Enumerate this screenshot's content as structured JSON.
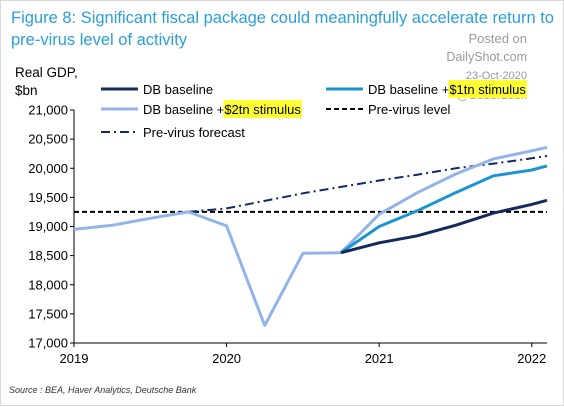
{
  "title": "Figure 8: Significant fiscal package could meaningfully accelerate return to pre-virus level of activity",
  "watermark": {
    "line1": "Posted on",
    "line2": "DailyShot.com",
    "line3": "23-Oct-2020",
    "line4": "@SoberLook"
  },
  "source": "Source : BEA, Haver Analytics, Deutsche Bank",
  "chart_data": {
    "type": "line",
    "ylabel_line1": "Real GDP,",
    "ylabel_line2": "$bn",
    "ylim": [
      17000,
      21000
    ],
    "yticks": [
      17000,
      17500,
      18000,
      18500,
      19000,
      19500,
      20000,
      20500,
      21000
    ],
    "ytick_labels": [
      "17,000",
      "17,500",
      "18,000",
      "18,500",
      "19,000",
      "19,500",
      "20,000",
      "20,500",
      "21,000"
    ],
    "xlim": [
      2019.0,
      2022.1
    ],
    "xticks": [
      2019,
      2020,
      2021,
      2022
    ],
    "xtick_labels": [
      "2019",
      "2020",
      "2021",
      "2022"
    ],
    "grid": false,
    "legend_position": "top",
    "series": [
      {
        "name": "DB baseline",
        "color": "#14295e",
        "dash": "solid",
        "x": [
          2020.75,
          2021.0,
          2021.25,
          2021.5,
          2021.75,
          2022.0,
          2022.1
        ],
        "y": [
          18550,
          18720,
          18840,
          19020,
          19230,
          19380,
          19450
        ]
      },
      {
        "name_prefix": "DB baseline + ",
        "name_highlight": "$1tn stimulus",
        "color": "#1b94cf",
        "dash": "solid",
        "x": [
          2020.75,
          2021.0,
          2021.25,
          2021.5,
          2021.75,
          2022.0,
          2022.1
        ],
        "y": [
          18550,
          19000,
          19270,
          19580,
          19870,
          19970,
          20040
        ]
      },
      {
        "name_prefix": "DB baseline + ",
        "name_highlight": "$2tn stimulus",
        "color": "#92b4ea",
        "dash": "solid",
        "x": [
          2019.0,
          2019.25,
          2019.5,
          2019.75,
          2020.0,
          2020.25,
          2020.5,
          2020.75,
          2021.0,
          2021.25,
          2021.5,
          2021.75,
          2022.0,
          2022.1
        ],
        "y": [
          18950,
          19020,
          19140,
          19250,
          19010,
          17300,
          18540,
          18550,
          19210,
          19580,
          19900,
          20160,
          20300,
          20360
        ]
      },
      {
        "name": "Pre-virus level",
        "color": "#000000",
        "dash": "dashed",
        "x": [
          2019.0,
          2022.1
        ],
        "y": [
          19250,
          19250
        ]
      },
      {
        "name": "Pre-virus forecast",
        "color": "#14295e",
        "dash": "dashdot",
        "x": [
          2019.75,
          2020.0,
          2020.25,
          2020.5,
          2020.75,
          2021.0,
          2021.25,
          2021.5,
          2021.75,
          2022.0,
          2022.1
        ],
        "y": [
          19250,
          19310,
          19440,
          19570,
          19680,
          19790,
          19890,
          20000,
          20080,
          20170,
          20210
        ]
      }
    ]
  }
}
